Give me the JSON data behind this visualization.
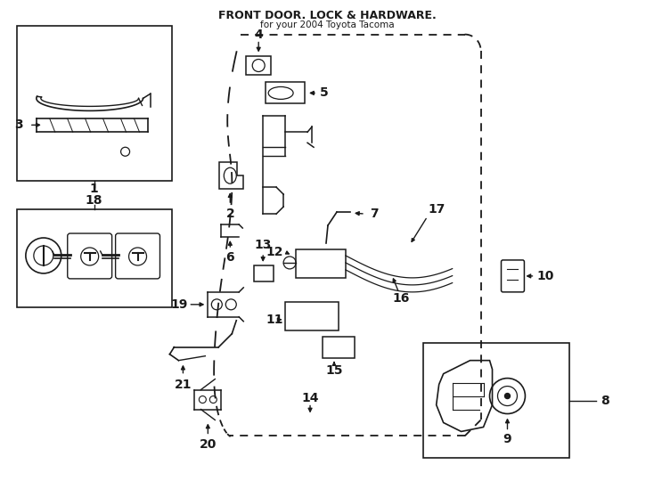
{
  "bg_color": "#ffffff",
  "line_color": "#1a1a1a",
  "fig_width": 7.34,
  "fig_height": 5.4,
  "dpi": 100,
  "title": "FRONT DOOR. LOCK & HARDWARE.",
  "subtitle": "for your 2004 Toyota Tacoma"
}
